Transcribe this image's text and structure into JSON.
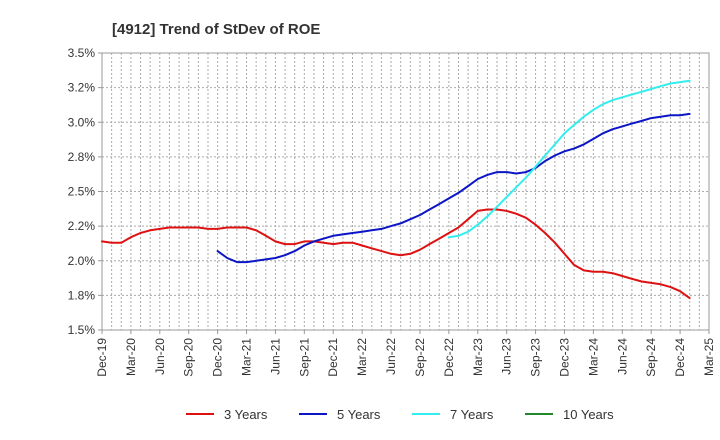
{
  "chart_data": {
    "type": "line",
    "title": "[4912]  Trend of StDev of ROE",
    "y_ticks": [
      "1.5%",
      "1.8%",
      "2.0%",
      "2.2%",
      "2.5%",
      "2.8%",
      "3.0%",
      "3.2%",
      "3.5%"
    ],
    "ylim": [
      1.5,
      3.5
    ],
    "x_ticks": [
      "Dec-19",
      "Mar-20",
      "Jun-20",
      "Sep-20",
      "Dec-20",
      "Mar-21",
      "Jun-21",
      "Sep-21",
      "Dec-21",
      "Mar-22",
      "Jun-22",
      "Sep-22",
      "Dec-22",
      "Mar-23",
      "Jun-23",
      "Sep-23",
      "Dec-23",
      "Mar-24",
      "Jun-24",
      "Sep-24",
      "Dec-24",
      "Mar-25"
    ],
    "xlim_quarters": [
      0,
      21
    ],
    "grid": true,
    "legend_position": "bottom",
    "series": [
      {
        "name": "3 Years",
        "color": "#dd1111",
        "points": [
          [
            0,
            2.14
          ],
          [
            0.33,
            2.13
          ],
          [
            0.67,
            2.13
          ],
          [
            1,
            2.17
          ],
          [
            1.33,
            2.2
          ],
          [
            1.67,
            2.22
          ],
          [
            2,
            2.23
          ],
          [
            2.33,
            2.24
          ],
          [
            2.67,
            2.24
          ],
          [
            3,
            2.24
          ],
          [
            3.33,
            2.24
          ],
          [
            3.67,
            2.23
          ],
          [
            4,
            2.23
          ],
          [
            4.33,
            2.24
          ],
          [
            4.67,
            2.24
          ],
          [
            5,
            2.24
          ],
          [
            5.33,
            2.22
          ],
          [
            5.67,
            2.18
          ],
          [
            6,
            2.14
          ],
          [
            6.33,
            2.12
          ],
          [
            6.67,
            2.12
          ],
          [
            7,
            2.14
          ],
          [
            7.33,
            2.14
          ],
          [
            7.67,
            2.13
          ],
          [
            8,
            2.12
          ],
          [
            8.33,
            2.13
          ],
          [
            8.67,
            2.13
          ],
          [
            9,
            2.11
          ],
          [
            9.33,
            2.09
          ],
          [
            9.67,
            2.07
          ],
          [
            10,
            2.05
          ],
          [
            10.33,
            2.04
          ],
          [
            10.67,
            2.05
          ],
          [
            11,
            2.08
          ],
          [
            11.33,
            2.12
          ],
          [
            11.67,
            2.16
          ],
          [
            12,
            2.2
          ],
          [
            12.33,
            2.24
          ],
          [
            12.67,
            2.3
          ],
          [
            13,
            2.36
          ],
          [
            13.33,
            2.37
          ],
          [
            13.67,
            2.37
          ],
          [
            14,
            2.36
          ],
          [
            14.33,
            2.34
          ],
          [
            14.67,
            2.31
          ],
          [
            15,
            2.26
          ],
          [
            15.33,
            2.2
          ],
          [
            15.67,
            2.13
          ],
          [
            16,
            2.05
          ],
          [
            16.33,
            1.97
          ],
          [
            16.67,
            1.93
          ],
          [
            17,
            1.92
          ],
          [
            17.33,
            1.92
          ],
          [
            17.67,
            1.91
          ],
          [
            18,
            1.89
          ],
          [
            18.33,
            1.87
          ],
          [
            18.67,
            1.85
          ],
          [
            19,
            1.84
          ],
          [
            19.33,
            1.83
          ],
          [
            19.67,
            1.81
          ],
          [
            20,
            1.78
          ],
          [
            20.33,
            1.73
          ]
        ]
      },
      {
        "name": "5 Years",
        "color": "#0c16c6",
        "points": [
          [
            4,
            2.07
          ],
          [
            4.33,
            2.02
          ],
          [
            4.67,
            1.99
          ],
          [
            5,
            1.99
          ],
          [
            5.33,
            2.0
          ],
          [
            5.67,
            2.01
          ],
          [
            6,
            2.02
          ],
          [
            6.33,
            2.04
          ],
          [
            6.67,
            2.07
          ],
          [
            7,
            2.11
          ],
          [
            7.33,
            2.14
          ],
          [
            7.67,
            2.16
          ],
          [
            8,
            2.18
          ],
          [
            8.33,
            2.19
          ],
          [
            8.67,
            2.2
          ],
          [
            9,
            2.21
          ],
          [
            9.33,
            2.22
          ],
          [
            9.67,
            2.23
          ],
          [
            10,
            2.25
          ],
          [
            10.33,
            2.27
          ],
          [
            10.67,
            2.3
          ],
          [
            11,
            2.33
          ],
          [
            11.33,
            2.37
          ],
          [
            11.67,
            2.41
          ],
          [
            12,
            2.45
          ],
          [
            12.33,
            2.49
          ],
          [
            12.67,
            2.54
          ],
          [
            13,
            2.59
          ],
          [
            13.33,
            2.62
          ],
          [
            13.67,
            2.64
          ],
          [
            14,
            2.64
          ],
          [
            14.33,
            2.63
          ],
          [
            14.67,
            2.64
          ],
          [
            15,
            2.67
          ],
          [
            15.33,
            2.72
          ],
          [
            15.67,
            2.76
          ],
          [
            16,
            2.79
          ],
          [
            16.33,
            2.81
          ],
          [
            16.67,
            2.84
          ],
          [
            17,
            2.88
          ],
          [
            17.33,
            2.92
          ],
          [
            17.67,
            2.95
          ],
          [
            18,
            2.97
          ],
          [
            18.33,
            2.99
          ],
          [
            18.67,
            3.01
          ],
          [
            19,
            3.03
          ],
          [
            19.33,
            3.04
          ],
          [
            19.67,
            3.05
          ],
          [
            20,
            3.05
          ],
          [
            20.33,
            3.06
          ]
        ]
      },
      {
        "name": "7 Years",
        "color": "#33eeee",
        "points": [
          [
            12,
            2.17
          ],
          [
            12.33,
            2.18
          ],
          [
            12.67,
            2.21
          ],
          [
            13,
            2.26
          ],
          [
            13.33,
            2.32
          ],
          [
            13.67,
            2.39
          ],
          [
            14,
            2.46
          ],
          [
            14.33,
            2.53
          ],
          [
            14.67,
            2.6
          ],
          [
            15,
            2.68
          ],
          [
            15.33,
            2.76
          ],
          [
            15.67,
            2.84
          ],
          [
            16,
            2.92
          ],
          [
            16.33,
            2.98
          ],
          [
            16.67,
            3.04
          ],
          [
            17,
            3.09
          ],
          [
            17.33,
            3.13
          ],
          [
            17.67,
            3.16
          ],
          [
            18,
            3.18
          ],
          [
            18.33,
            3.2
          ],
          [
            18.67,
            3.22
          ],
          [
            19,
            3.24
          ],
          [
            19.33,
            3.26
          ],
          [
            19.67,
            3.28
          ],
          [
            20,
            3.29
          ],
          [
            20.33,
            3.3
          ]
        ]
      },
      {
        "name": "10 Years",
        "color": "#22882c",
        "points": []
      }
    ]
  }
}
